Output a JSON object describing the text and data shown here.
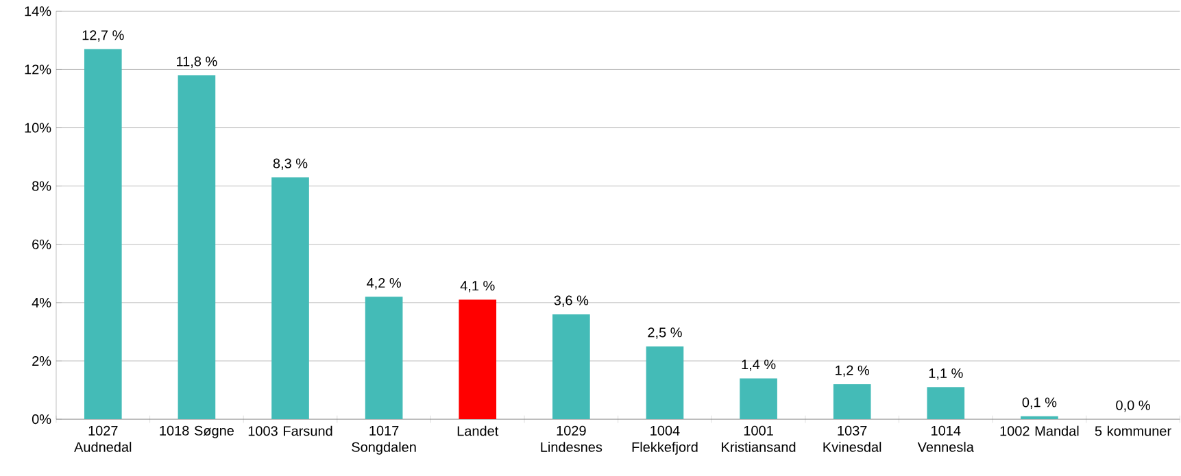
{
  "chart_data": {
    "type": "bar",
    "categories": [
      "1027 Audnedal",
      "1018 Søgne",
      "1003 Farsund",
      "1017 Songdalen",
      "Landet",
      "1029 Lindesnes",
      "1004 Flekkefjord",
      "1001 Kristiansand",
      "1037 Kvinesdal",
      "1014 Vennesla",
      "1002 Mandal",
      "5 kommuner"
    ],
    "values": [
      12.7,
      11.8,
      8.3,
      4.2,
      4.1,
      3.6,
      2.5,
      1.4,
      1.2,
      1.1,
      0.1,
      0.0
    ],
    "value_labels": [
      "12,7 %",
      "11,8 %",
      "8,3 %",
      "4,2 %",
      "4,1 %",
      "3,6 %",
      "2,5 %",
      "1,4 %",
      "1,2 %",
      "1,1 %",
      "0,1 %",
      "0,0 %"
    ],
    "colors": [
      "#44bbb7",
      "#44bbb7",
      "#44bbb7",
      "#44bbb7",
      "#ff0000",
      "#44bbb7",
      "#44bbb7",
      "#44bbb7",
      "#44bbb7",
      "#44bbb7",
      "#44bbb7",
      "#44bbb7"
    ],
    "ylim": [
      0,
      14
    ],
    "yticks": [
      {
        "value": 0,
        "label": "0%"
      },
      {
        "value": 2,
        "label": "2%"
      },
      {
        "value": 4,
        "label": "4%"
      },
      {
        "value": 6,
        "label": "6%"
      },
      {
        "value": 8,
        "label": "8%"
      },
      {
        "value": 10,
        "label": "10%"
      },
      {
        "value": 12,
        "label": "12%"
      },
      {
        "value": 14,
        "label": "14%"
      }
    ],
    "grid": "y"
  }
}
